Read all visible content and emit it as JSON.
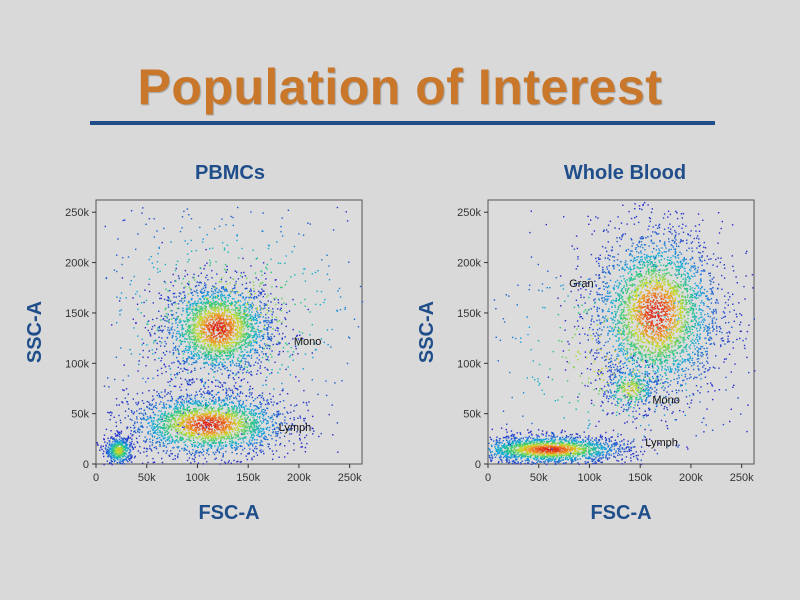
{
  "slide": {
    "title": "Population of Interest",
    "accent": "#c9772a",
    "title_color": "#1f4e8a",
    "background": "#d9d9d9"
  },
  "chart_data": [
    {
      "type": "scatter",
      "title": "PBMCs",
      "xlabel": "FSC-A",
      "ylabel": "SSC-A",
      "xlim": [
        0,
        262144
      ],
      "ylim": [
        0,
        262144
      ],
      "x_ticks": [
        {
          "value": 0,
          "label": "0"
        },
        {
          "value": 50000,
          "label": "50k"
        },
        {
          "value": 100000,
          "label": "100k"
        },
        {
          "value": 150000,
          "label": "150k"
        },
        {
          "value": 200000,
          "label": "200k"
        },
        {
          "value": 250000,
          "label": "250k"
        }
      ],
      "y_ticks": [
        {
          "value": 0,
          "label": "0"
        },
        {
          "value": 50000,
          "label": "50k"
        },
        {
          "value": 100000,
          "label": "100k"
        },
        {
          "value": 150000,
          "label": "150k"
        },
        {
          "value": 200000,
          "label": "200k"
        },
        {
          "value": 250000,
          "label": "250k"
        }
      ],
      "annotations": [
        {
          "text": "Mono",
          "x": 195000,
          "y": 118000
        },
        {
          "text": "Lymph",
          "x": 180000,
          "y": 33000
        }
      ],
      "populations": [
        {
          "center": [
            120000,
            135000
          ],
          "spread": [
            28000,
            24000
          ],
          "points": 2200
        },
        {
          "center": [
            110000,
            40000
          ],
          "spread": [
            40000,
            16000
          ],
          "points": 2200
        },
        {
          "center": [
            22000,
            14000
          ],
          "spread": [
            7000,
            7000
          ],
          "points": 450
        },
        {
          "center": [
            130000,
            150000
          ],
          "spread": [
            80000,
            60000
          ],
          "points": 600
        }
      ]
    },
    {
      "type": "scatter",
      "title": "Whole Blood",
      "xlabel": "FSC-A",
      "ylabel": "SSC-A",
      "xlim": [
        0,
        262144
      ],
      "ylim": [
        0,
        262144
      ],
      "x_ticks": [
        {
          "value": 0,
          "label": "0"
        },
        {
          "value": 50000,
          "label": "50k"
        },
        {
          "value": 100000,
          "label": "100k"
        },
        {
          "value": 150000,
          "label": "150k"
        },
        {
          "value": 200000,
          "label": "200k"
        },
        {
          "value": 250000,
          "label": "250k"
        }
      ],
      "y_ticks": [
        {
          "value": 0,
          "label": "0"
        },
        {
          "value": 50000,
          "label": "50k"
        },
        {
          "value": 100000,
          "label": "100k"
        },
        {
          "value": 150000,
          "label": "150k"
        },
        {
          "value": 200000,
          "label": "200k"
        },
        {
          "value": 250000,
          "label": "250k"
        }
      ],
      "annotations": [
        {
          "text": "Gran",
          "x": 80000,
          "y": 176000
        },
        {
          "text": "Mono",
          "x": 162000,
          "y": 60000
        },
        {
          "text": "Lymph",
          "x": 155000,
          "y": 18000
        }
      ],
      "populations": [
        {
          "center": [
            165000,
            150000
          ],
          "spread": [
            32000,
            42000
          ],
          "points": 3000
        },
        {
          "center": [
            140000,
            75000
          ],
          "spread": [
            14000,
            12000
          ],
          "points": 300
        },
        {
          "center": [
            60000,
            15000
          ],
          "spread": [
            38000,
            7000
          ],
          "points": 1800
        },
        {
          "center": [
            120000,
            110000
          ],
          "spread": [
            70000,
            60000
          ],
          "points": 400
        }
      ]
    }
  ]
}
